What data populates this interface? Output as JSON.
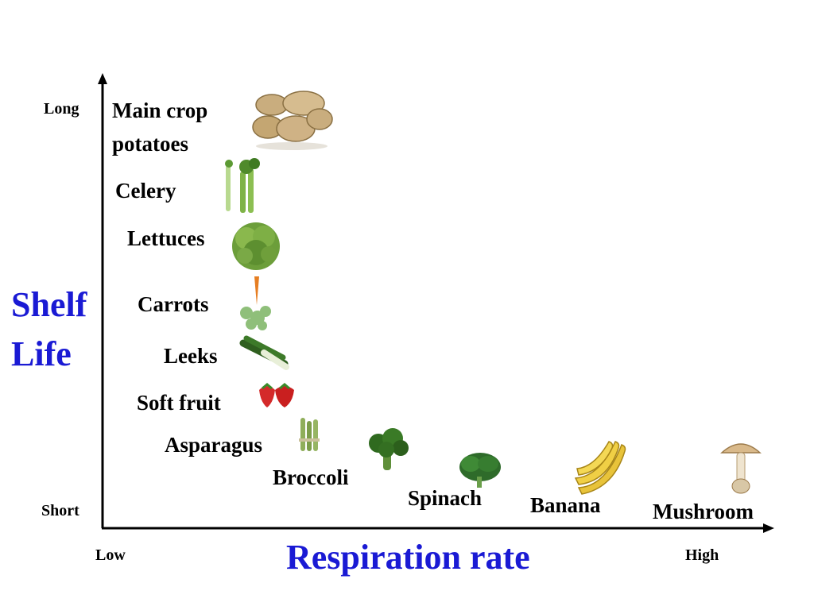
{
  "axes": {
    "y_title_line1": "Shelf",
    "y_title_line2": "Life",
    "x_title": "Respiration rate",
    "y_tick_top": "Long",
    "y_tick_bottom": "Short",
    "x_tick_left": "Low",
    "x_tick_right": "High"
  },
  "items": {
    "potatoes_line1": "Main crop",
    "potatoes_line2": "potatoes",
    "celery": "Celery",
    "lettuces": "Lettuces",
    "carrots": "Carrots",
    "leeks": "Leeks",
    "soft_fruit": "Soft fruit",
    "asparagus": "Asparagus",
    "broccoli": "Broccoli",
    "spinach": "Spinach",
    "banana": "Banana",
    "mushroom": "Mushroom"
  },
  "colors": {
    "axis_title": "#1a1ad4",
    "text": "#000000"
  }
}
